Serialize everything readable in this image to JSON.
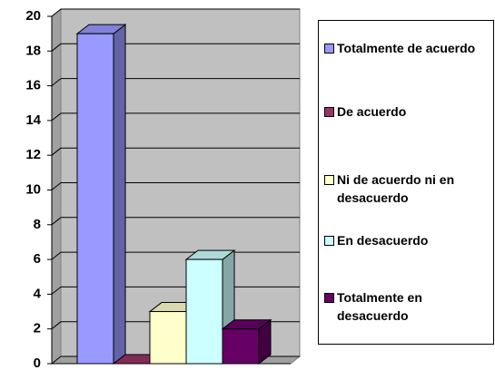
{
  "chart_data": {
    "type": "bar",
    "categories": [
      null
    ],
    "series": [
      {
        "name": "Totalmente de acuerdo",
        "color": "#9999ff",
        "values": [
          19
        ]
      },
      {
        "name": "De acuerdo",
        "color": "#993366",
        "values": [
          0
        ]
      },
      {
        "name": "Ni de acuerdo ni en desacuerdo",
        "color": "#ffffcc",
        "values": [
          3
        ]
      },
      {
        "name": "En desacuerdo",
        "color": "#ccffff",
        "values": [
          6
        ]
      },
      {
        "name": "Totalmente en desacuerdo",
        "color": "#660066",
        "values": [
          2
        ]
      }
    ],
    "ylim": [
      0,
      20
    ],
    "yticks": [
      0,
      2,
      4,
      6,
      8,
      10,
      12,
      14,
      16,
      18,
      20
    ],
    "grid": true,
    "legend": "right"
  }
}
